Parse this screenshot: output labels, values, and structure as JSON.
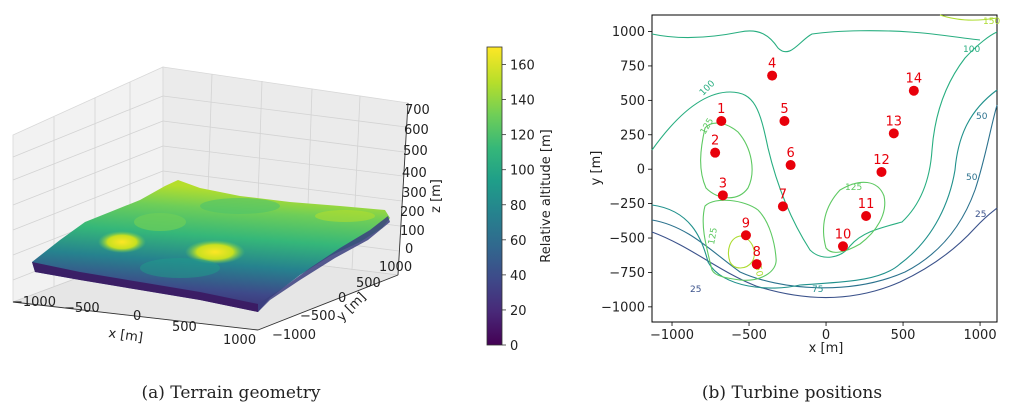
{
  "chart_data": [
    {
      "type": "surface3d",
      "caption": "(a) Terrain geometry",
      "xlabel": "x [m]",
      "ylabel": "y [m]",
      "zlabel": "z [m]",
      "x_ticks": [
        "−1000",
        "−500",
        "0",
        "500",
        "1000"
      ],
      "y_ticks": [
        "−1000",
        "−500",
        "0",
        "500",
        "1000"
      ],
      "z_ticks": [
        "0",
        "100",
        "200",
        "300",
        "400",
        "500",
        "600",
        "700"
      ],
      "xlim": [
        -1100,
        1100
      ],
      "ylim": [
        -1100,
        1100
      ],
      "zlim": [
        0,
        700
      ],
      "colorbar": {
        "label": "Relative altitude [m]",
        "ticks": [
          "0",
          "20",
          "40",
          "60",
          "80",
          "100",
          "120",
          "140",
          "160"
        ],
        "range": [
          0,
          170
        ],
        "colormap": [
          "#440154",
          "#482878",
          "#3e4989",
          "#31688e",
          "#26828e",
          "#1f9e89",
          "#35b779",
          "#6ece58",
          "#b5de2b",
          "#fde725"
        ]
      },
      "grid": true
    },
    {
      "type": "scatter",
      "caption": "(b) Turbine positions",
      "xlabel": "x [m]",
      "ylabel": "y [m]",
      "x_ticks": [
        "−1000",
        "−500",
        "0",
        "500",
        "1000"
      ],
      "y_ticks": [
        "1000",
        "750",
        "500",
        "250",
        "0",
        "−250",
        "−500",
        "−750",
        "−1000"
      ],
      "xlim": [
        -1130,
        1110
      ],
      "ylim": [
        -1110,
        1120
      ],
      "marker_color": "#e8000b",
      "label_color": "#e8000b",
      "points": [
        {
          "label": "1",
          "x": -680,
          "y": 350
        },
        {
          "label": "2",
          "x": -720,
          "y": 120
        },
        {
          "label": "3",
          "x": -670,
          "y": -190
        },
        {
          "label": "4",
          "x": -350,
          "y": 680
        },
        {
          "label": "5",
          "x": -270,
          "y": 350
        },
        {
          "label": "6",
          "x": -230,
          "y": 30
        },
        {
          "label": "7",
          "x": -280,
          "y": -270
        },
        {
          "label": "8",
          "x": -450,
          "y": -690
        },
        {
          "label": "9",
          "x": -520,
          "y": -480
        },
        {
          "label": "10",
          "x": 110,
          "y": -560
        },
        {
          "label": "11",
          "x": 260,
          "y": -340
        },
        {
          "label": "12",
          "x": 360,
          "y": -20
        },
        {
          "label": "13",
          "x": 440,
          "y": 260
        },
        {
          "label": "14",
          "x": 570,
          "y": 570
        }
      ],
      "contour_labels": [
        "25",
        "25",
        "50",
        "50",
        "75",
        "100",
        "100",
        "125",
        "125",
        "125",
        "150",
        "150"
      ],
      "contour_colors": {
        "25": "#3b528b",
        "50": "#2c728e",
        "75": "#21918c",
        "100": "#28ae80",
        "125": "#5ec962",
        "150": "#addc30"
      },
      "grid": false
    }
  ]
}
